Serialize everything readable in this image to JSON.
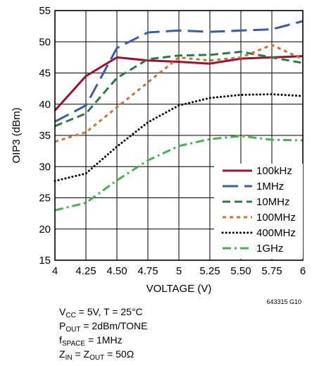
{
  "chart_data": {
    "type": "line",
    "xlabel": "VOLTAGE (V)",
    "ylabel": "OIP3 (dBm)",
    "xlim": [
      4,
      6
    ],
    "ylim": [
      15,
      55
    ],
    "x_ticks": [
      4,
      4.25,
      4.5,
      4.75,
      5,
      5.25,
      5.5,
      5.75,
      6
    ],
    "x_tick_labels": [
      "4",
      "4.25",
      "4.50",
      "4.75",
      "5",
      "5.25",
      "5.50",
      "5.75",
      "6"
    ],
    "y_ticks": [
      15,
      20,
      25,
      30,
      35,
      40,
      45,
      50,
      55
    ],
    "grid": true,
    "legend_position": "lower-right",
    "figure_id": "643315 G10",
    "series": [
      {
        "name": "100kHz",
        "color": "#9b1035",
        "dash": "solid",
        "x": [
          4,
          4.25,
          4.5,
          4.75,
          5,
          5.25,
          5.5,
          5.75,
          6
        ],
        "y": [
          39.0,
          44.5,
          47.5,
          47.0,
          46.8,
          46.5,
          47.3,
          47.5,
          47.7
        ]
      },
      {
        "name": "1MHz",
        "color": "#3d5ca6",
        "dash": "long-dash",
        "x": [
          4,
          4.25,
          4.5,
          4.75,
          5,
          5.25,
          5.5,
          5.75,
          6
        ],
        "y": [
          37.2,
          39.8,
          49.0,
          51.5,
          51.8,
          51.6,
          51.8,
          52.0,
          53.3
        ]
      },
      {
        "name": "10MHz",
        "color": "#2e7a46",
        "dash": "dash",
        "x": [
          4,
          4.25,
          4.5,
          4.75,
          5,
          5.25,
          5.5,
          5.75,
          6
        ],
        "y": [
          36.5,
          38.5,
          44.2,
          47.2,
          47.8,
          47.9,
          48.4,
          47.5,
          46.6
        ]
      },
      {
        "name": "100MHz",
        "color": "#c7743a",
        "dash": "short-dash",
        "x": [
          4,
          4.25,
          4.5,
          4.75,
          5,
          5.25,
          5.5,
          5.75,
          6
        ],
        "y": [
          34.0,
          35.5,
          39.5,
          43.5,
          47.5,
          47.0,
          47.5,
          49.5,
          47.2
        ]
      },
      {
        "name": "400MHz",
        "color": "#000000",
        "dash": "dot",
        "x": [
          4,
          4.25,
          4.5,
          4.75,
          5,
          5.25,
          5.5,
          5.75,
          6
        ],
        "y": [
          27.7,
          28.9,
          33.2,
          37.1,
          39.8,
          41.0,
          41.5,
          41.6,
          41.3
        ]
      },
      {
        "name": "1GHz",
        "color": "#4caf50",
        "dash": "dash-dot",
        "x": [
          4,
          4.25,
          4.5,
          4.75,
          5,
          5.25,
          5.5,
          5.75,
          6
        ],
        "y": [
          23.0,
          24.2,
          27.8,
          31.0,
          33.3,
          34.4,
          34.9,
          34.3,
          34.2
        ]
      }
    ]
  },
  "conditions": {
    "line1": {
      "v": "V",
      "v_sub": "CC",
      "rest": " = 5V, T = 25°C"
    },
    "line2": {
      "p": "P",
      "p_sub": "OUT",
      "rest": " = 2dBm/TONE"
    },
    "line3": {
      "f": "f",
      "f_sub": "SPACE",
      "rest": " = 1MHz"
    },
    "line4": {
      "z1": "Z",
      "z1_sub": "IN",
      "mid": " = Z",
      "z2_sub": "OUT",
      "rest": " = 50Ω"
    }
  }
}
